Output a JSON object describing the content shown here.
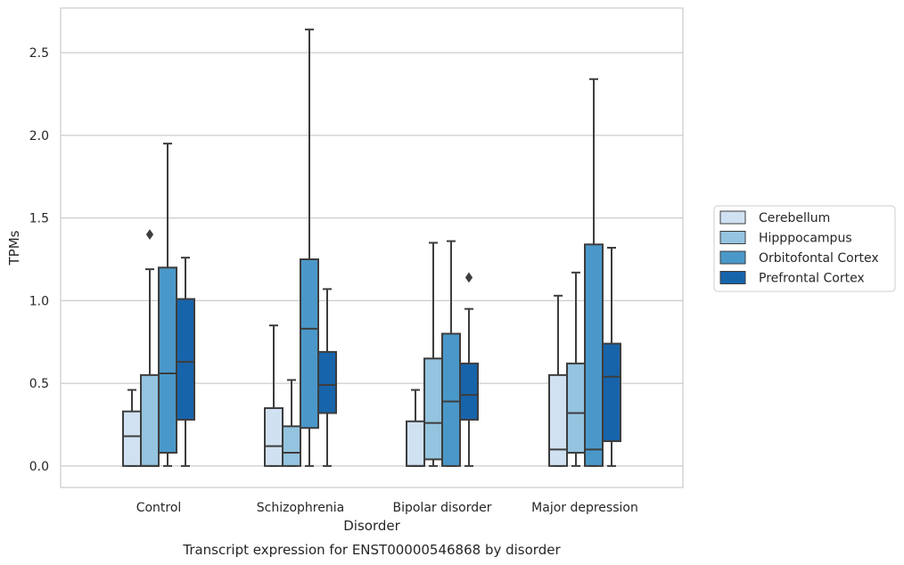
{
  "chart_data": {
    "type": "boxplot",
    "caption": "Transcript expression for ENST00000546868 by disorder",
    "xlabel": "Disorder",
    "ylabel": "TPMs",
    "ylim": [
      -0.13,
      2.77
    ],
    "yticks": [
      0.0,
      0.5,
      1.0,
      1.5,
      2.0,
      2.5
    ],
    "ytick_labels": [
      "0.0",
      "0.5",
      "1.0",
      "1.5",
      "2.0",
      "2.5"
    ],
    "grid": "horizontal",
    "legend_position": "right",
    "categories": [
      "Control",
      "Schizophrenia",
      "Bipolar disorder",
      "Major depression"
    ],
    "series": [
      {
        "name": "Cerebellum",
        "color": "#d0e1f2",
        "boxes": [
          {
            "whisker_low": 0.0,
            "q1": 0.0,
            "median": 0.18,
            "q3": 0.33,
            "whisker_high": 0.46,
            "outliers": []
          },
          {
            "whisker_low": 0.0,
            "q1": 0.0,
            "median": 0.12,
            "q3": 0.35,
            "whisker_high": 0.85,
            "outliers": []
          },
          {
            "whisker_low": 0.0,
            "q1": 0.0,
            "median": 0.0,
            "q3": 0.27,
            "whisker_high": 0.46,
            "outliers": []
          },
          {
            "whisker_low": 0.0,
            "q1": 0.0,
            "median": 0.1,
            "q3": 0.55,
            "whisker_high": 1.03,
            "outliers": []
          }
        ]
      },
      {
        "name": "Hipppocampus",
        "color": "#94c4df",
        "boxes": [
          {
            "whisker_low": 0.0,
            "q1": 0.0,
            "median": 0.0,
            "q3": 0.55,
            "whisker_high": 1.19,
            "outliers": [
              1.4
            ]
          },
          {
            "whisker_low": 0.0,
            "q1": 0.0,
            "median": 0.08,
            "q3": 0.24,
            "whisker_high": 0.52,
            "outliers": []
          },
          {
            "whisker_low": 0.0,
            "q1": 0.04,
            "median": 0.26,
            "q3": 0.65,
            "whisker_high": 1.35,
            "outliers": []
          },
          {
            "whisker_low": 0.0,
            "q1": 0.08,
            "median": 0.32,
            "q3": 0.62,
            "whisker_high": 1.17,
            "outliers": []
          }
        ]
      },
      {
        "name": "Orbitofontal Cortex",
        "color": "#4a98c9",
        "boxes": [
          {
            "whisker_low": 0.0,
            "q1": 0.08,
            "median": 0.56,
            "q3": 1.2,
            "whisker_high": 1.95,
            "outliers": []
          },
          {
            "whisker_low": 0.0,
            "q1": 0.23,
            "median": 0.83,
            "q3": 1.25,
            "whisker_high": 2.64,
            "outliers": []
          },
          {
            "whisker_low": 0.0,
            "q1": 0.0,
            "median": 0.39,
            "q3": 0.8,
            "whisker_high": 1.36,
            "outliers": []
          },
          {
            "whisker_low": 0.0,
            "q1": 0.0,
            "median": 0.1,
            "q3": 1.34,
            "whisker_high": 2.34,
            "outliers": []
          }
        ]
      },
      {
        "name": "Prefrontal Cortex",
        "color": "#1764ab",
        "boxes": [
          {
            "whisker_low": 0.0,
            "q1": 0.28,
            "median": 0.63,
            "q3": 1.01,
            "whisker_high": 1.26,
            "outliers": []
          },
          {
            "whisker_low": 0.0,
            "q1": 0.32,
            "median": 0.49,
            "q3": 0.69,
            "whisker_high": 1.07,
            "outliers": []
          },
          {
            "whisker_low": 0.0,
            "q1": 0.28,
            "median": 0.43,
            "q3": 0.62,
            "whisker_high": 0.95,
            "outliers": [
              1.14
            ]
          },
          {
            "whisker_low": 0.0,
            "q1": 0.15,
            "median": 0.54,
            "q3": 0.74,
            "whisker_high": 1.32,
            "outliers": []
          }
        ]
      }
    ]
  }
}
